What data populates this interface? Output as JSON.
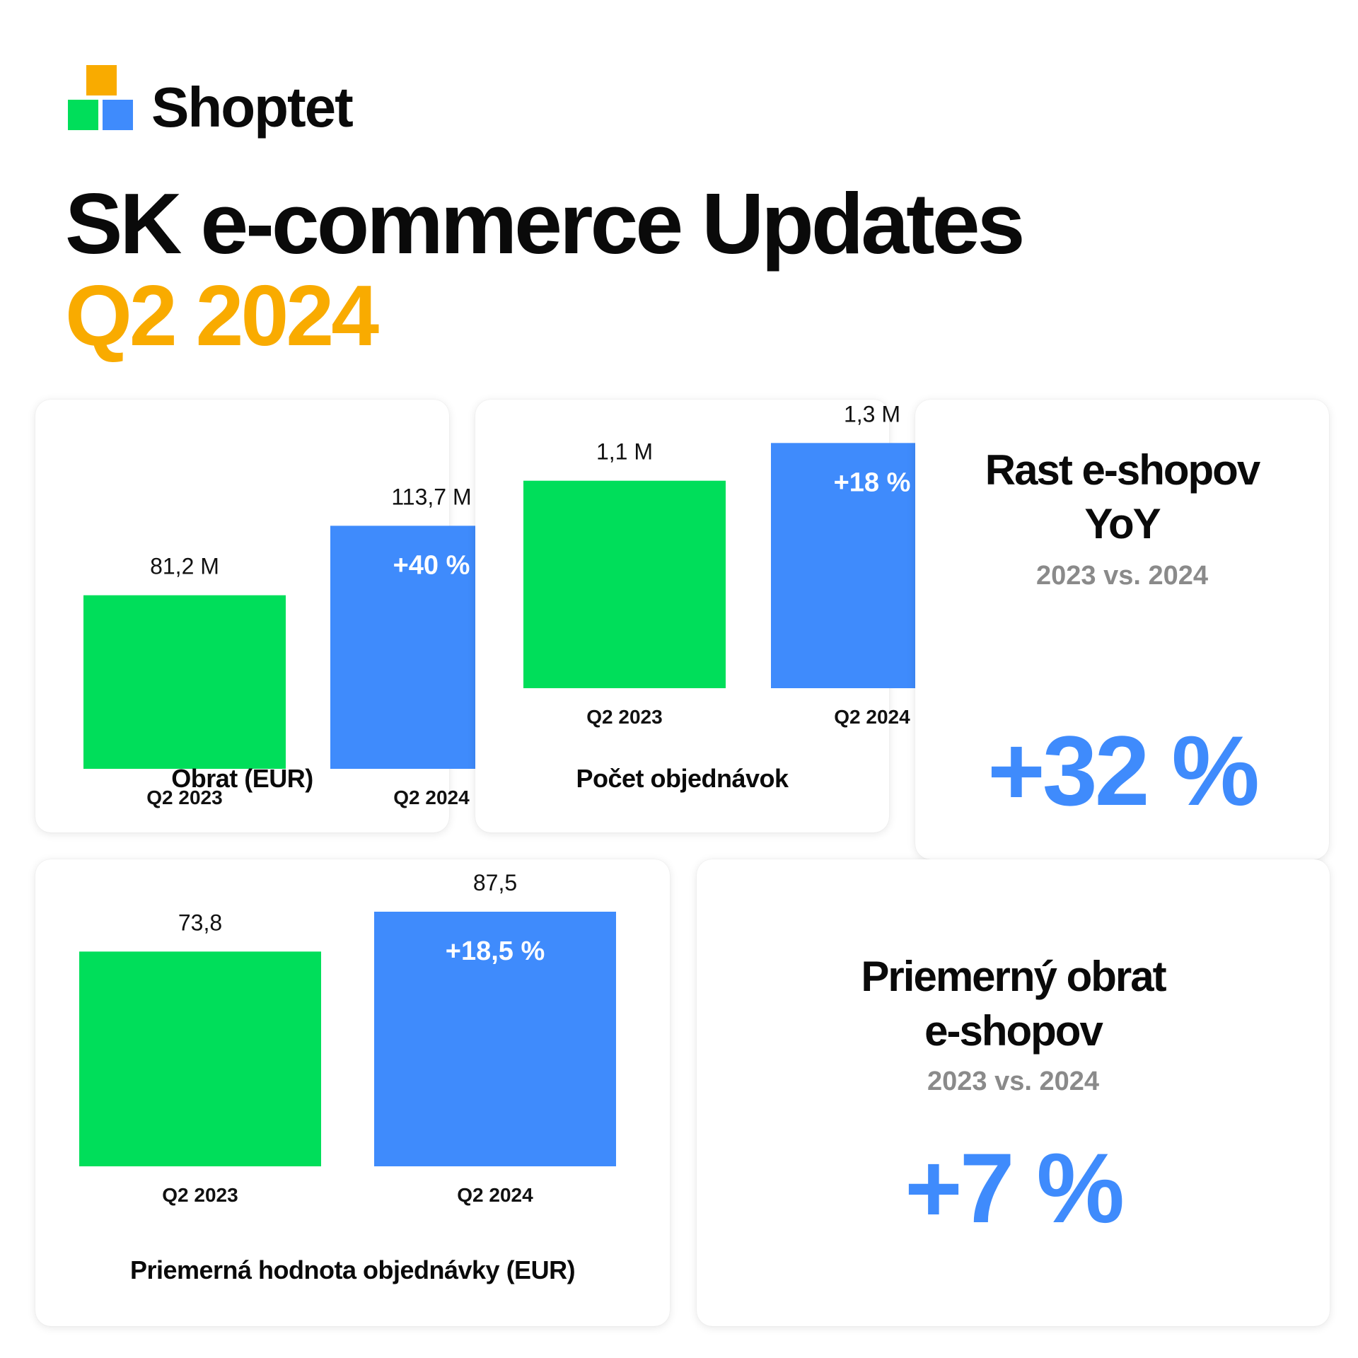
{
  "brand": {
    "name": "Shoptet"
  },
  "colors": {
    "orange": "#f9ab00",
    "green": "#00de5a",
    "blue": "#3f8bfc"
  },
  "header": {
    "title": "SK e-commerce Updates",
    "subtitle": "Q2 2024"
  },
  "chart_data": [
    {
      "type": "bar",
      "title": "Obrat  (EUR)",
      "categories": [
        "Q2 2023",
        "Q2 2024"
      ],
      "values": [
        81.2,
        113.7
      ],
      "value_labels": [
        "81,2 M",
        "113,7 M"
      ],
      "change_label": "+40 %",
      "ylim": [
        0,
        135
      ]
    },
    {
      "type": "bar",
      "title": "Počet objednávok",
      "categories": [
        "Q2 2023",
        "Q2 2024"
      ],
      "values": [
        1.1,
        1.3
      ],
      "value_labels": [
        "1,1 M",
        "1,3 M"
      ],
      "change_label": "+18 %",
      "ylim": [
        0,
        1.53
      ]
    },
    {
      "type": "bar",
      "title": "Priemerná hodnota objednávky (EUR)",
      "categories": [
        "Q2 2023",
        "Q2 2024"
      ],
      "values": [
        73.8,
        87.5
      ],
      "value_labels": [
        "73,8",
        "87,5"
      ],
      "change_label": "+18,5 %",
      "ylim": [
        0,
        105
      ]
    }
  ],
  "stats": [
    {
      "heading_line1": "Rast e-shopov",
      "heading_line2": "YoY",
      "comparison": "2023 vs. 2024",
      "value": "+32 %"
    },
    {
      "heading_line1": "Priemerný obrat",
      "heading_line2": "e-shopov",
      "comparison": "2023 vs. 2024",
      "value": "+7 %"
    }
  ]
}
